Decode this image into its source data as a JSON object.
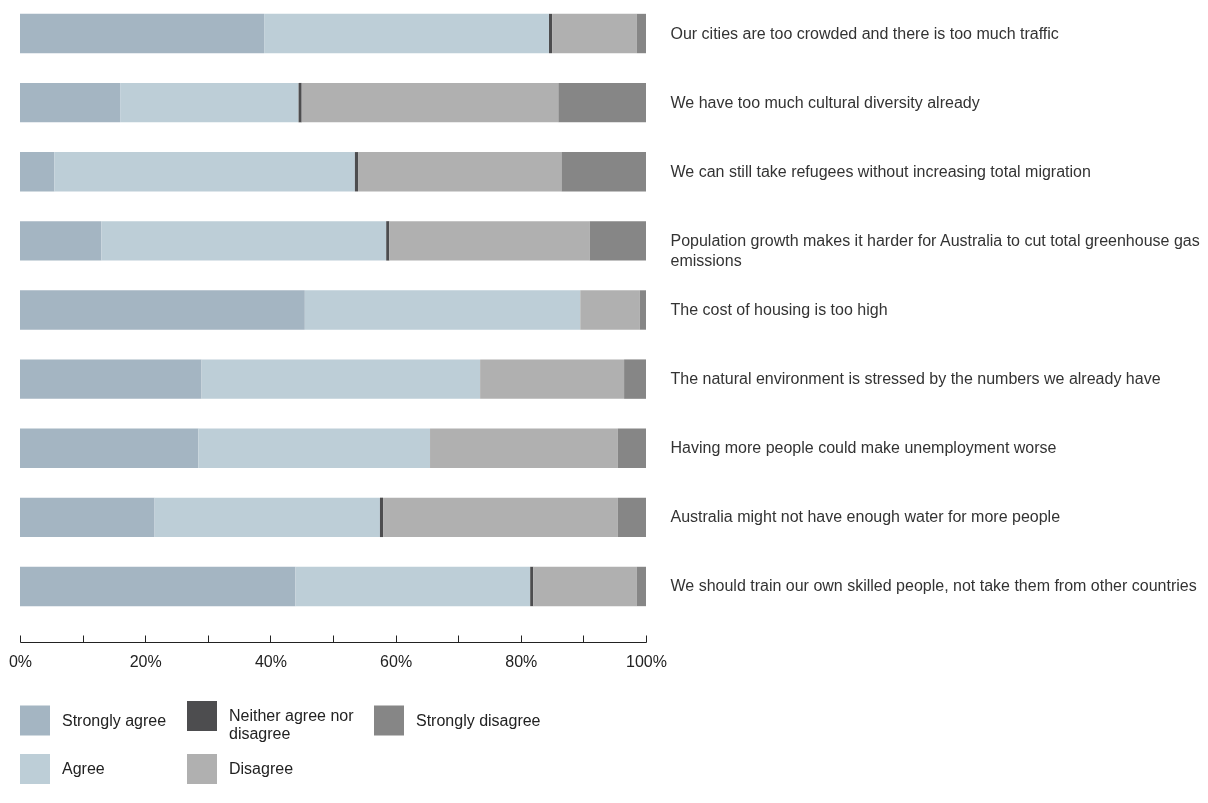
{
  "chart_data": {
    "type": "bar",
    "orientation": "horizontal",
    "stacked": true,
    "categories": [
      "Our cities are too crowded and there is too much traffic",
      "We have too much cultural diversity already",
      "We can still take refugees without increasing total migration",
      "Population growth makes it harder for Australia to cut total greenhouse gas emissions",
      "The cost of housing is too high",
      "The natural environment is stressed by the numbers we already have",
      "Having more people could make unemployment worse",
      "Australia might not have enough water for more people",
      "We should train our own skilled people, not take them from other countries"
    ],
    "series": [
      {
        "name": "Strongly agree",
        "color": "#a4b5c2",
        "values": [
          39,
          16,
          5.5,
          13,
          45.5,
          29,
          28.5,
          21.5,
          44
        ]
      },
      {
        "name": "Agree",
        "color": "#bdced7",
        "values": [
          45.5,
          28.5,
          48,
          45.5,
          44,
          44.5,
          37,
          36,
          37.5
        ]
      },
      {
        "name": "Neither agree nor disagree",
        "color": "#4d4d4f",
        "values": [
          0.5,
          0.5,
          0.5,
          0.5,
          0,
          0,
          0,
          0.5,
          0.5
        ]
      },
      {
        "name": "Disagree",
        "color": "#b0b0b0",
        "values": [
          13.5,
          41,
          32.5,
          32,
          9.5,
          23,
          30,
          37.5,
          16.5
        ]
      },
      {
        "name": "Strongly disagree",
        "color": "#868686",
        "values": [
          1.5,
          14,
          13.5,
          9,
          1,
          3.5,
          4.5,
          4.5,
          1.5
        ]
      }
    ],
    "xlim": [
      0,
      100
    ],
    "xticks": [
      {
        "value": 0,
        "label": "0%"
      },
      {
        "value": 10,
        "label": null
      },
      {
        "value": 20,
        "label": "20%"
      },
      {
        "value": 30,
        "label": null
      },
      {
        "value": 40,
        "label": "40%"
      },
      {
        "value": 50,
        "label": null
      },
      {
        "value": 60,
        "label": "60%"
      },
      {
        "value": 70,
        "label": null
      },
      {
        "value": 80,
        "label": "80%"
      },
      {
        "value": 90,
        "label": null
      },
      {
        "value": 100,
        "label": "100%"
      }
    ],
    "grid": false,
    "legend": "bottom left"
  }
}
